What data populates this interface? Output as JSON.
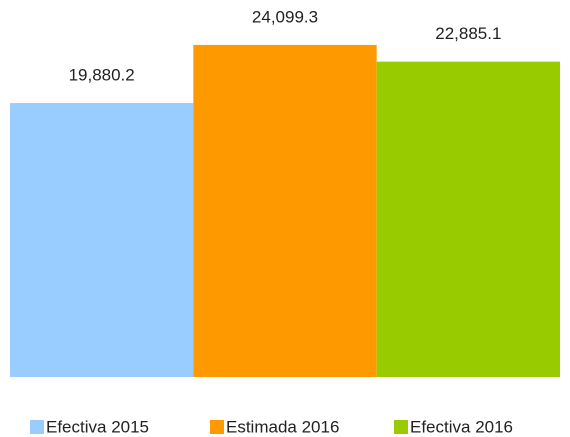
{
  "chart_data": {
    "type": "bar",
    "categories": [
      null
    ],
    "series": [
      {
        "name": "Efectiva 2015",
        "color": "#99ccff",
        "values": [
          19880.2
        ],
        "value_labels": [
          "19,880.2"
        ]
      },
      {
        "name": "Estimada 2016",
        "color": "#ff9900",
        "values": [
          24099.3
        ],
        "value_labels": [
          "24,099.3"
        ]
      },
      {
        "name": "Efectiva 2016",
        "color": "#99cc00",
        "values": [
          22885.1
        ],
        "value_labels": [
          "22,885.1"
        ]
      }
    ],
    "ylim": [
      0,
      25000
    ],
    "yticks": [],
    "grid": false,
    "legend": "bottom"
  }
}
